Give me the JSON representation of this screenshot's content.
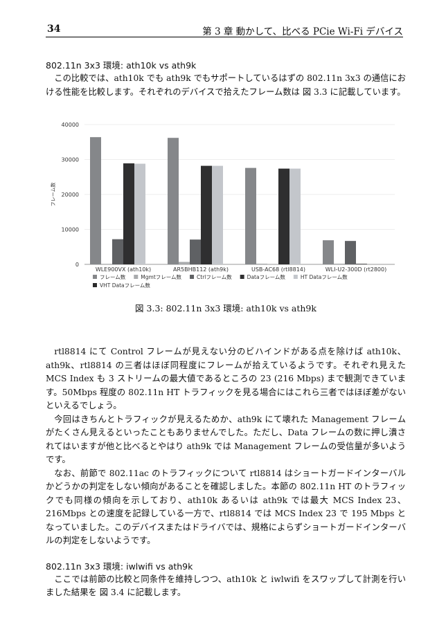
{
  "header": {
    "page_number": "34",
    "chapter_title": "第 3 章 動かして、比べる PCie Wi-Fi デバイス"
  },
  "section1": {
    "heading": "802.11n 3x3 環境: ath10k vs ath9k",
    "paragraph": "この比較では、ath10k でも ath9k でもサポートしているはずの 802.11n 3x3 の通信における性能を比較します。それぞれのデバイスで拾えたフレーム数は 図 3.3 に記載しています。"
  },
  "figure": {
    "caption": "図 3.3: 802.11n 3x3 環境: ath10k vs ath9k"
  },
  "chart_data": {
    "type": "bar",
    "ylabel": "フレーム数",
    "xlabel": "",
    "ylim": [
      0,
      40000
    ],
    "yticks": [
      "0",
      "10000",
      "20000",
      "30000",
      "40000"
    ],
    "grid": true,
    "legend_position": "bottom",
    "categories": [
      "WLE900VX (ath10k)",
      "AR5BHB112 (ath9k)",
      "USB-AC68 (rtl8814)",
      "WLI-U2-300D (rt2800)"
    ],
    "series": [
      {
        "name": "フレーム数",
        "color": "#85878a",
        "values": [
          36400,
          36200,
          27600,
          6900
        ]
      },
      {
        "name": "Mgmtフレーム数",
        "color": "#a9abad",
        "values": [
          150,
          700,
          200,
          200
        ]
      },
      {
        "name": "Ctrlフレーム数",
        "color": "#5f6164",
        "values": [
          7200,
          7100,
          0,
          6700
        ]
      },
      {
        "name": "Dataフレーム数",
        "color": "#2f2f30",
        "values": [
          28900,
          28200,
          27400,
          150
        ]
      },
      {
        "name": "HT Dataフレーム数",
        "color": "#c3c6cb",
        "values": [
          28800,
          28200,
          27400,
          0
        ]
      },
      {
        "name": "VHT Dataフレーム数",
        "color": "#2a2a2b",
        "values": [
          0,
          0,
          0,
          0
        ]
      }
    ]
  },
  "section1_body": [
    "rtl8814 にて Control フレームが見えない分のビハインドがある点を除けば ath10k、ath9k、rtl8814 の三者はほぼ同程度にフレームが拾えているようです。それぞれ見えた MCS Index も 3 ストリームの最大値であるところの 23 (216 Mbps) まで観測できています。50Mbps 程度の 802.11n HT トラフィックを見る場合にはこれら三者ではほぼ差がないといえるでしょう。",
    "今回はきちんとトラフィックが見えるためか、ath9k にて壊れた Management フレームがたくさん見えるといったこともありませんでした。ただし、Data フレームの数に押し潰されてはいますが他と比べるとやはり ath9k では Management フレームの受信量が多いようです。",
    "なお、前節で 802.11ac のトラフィックについて rtl8814 はショートガードインターバルかどうかの判定をしない傾向があることを確認しました。本節の 802.11n HT のトラフィックでも同様の傾向を示しており、ath10k あるいは ath9k では最大 MCS Index 23、216Mbps との速度を記録している一方で、rtl8814 では MCS Index 23 で 195 Mbps となっていました。このデバイスまたはドライバでは、規格によらずショートガードインターバルの判定をしないようです。"
  ],
  "section2": {
    "heading": "802.11n 3x3 環境: iwlwifi vs ath9k",
    "paragraph": "ここでは前節の比較と同条件を維持しつつ、ath10k と iwlwifi をスワップして計測を行いました結果を 図 3.4 に記載します。"
  }
}
